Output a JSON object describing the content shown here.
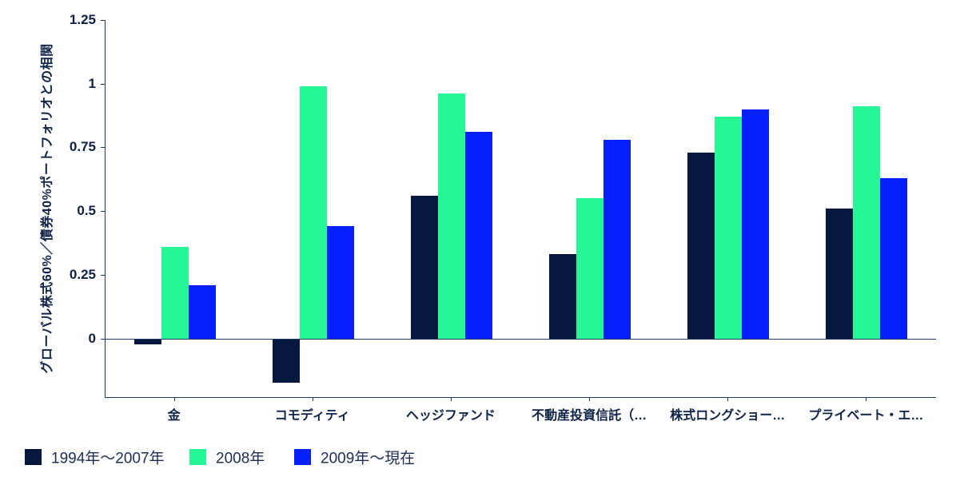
{
  "chart_data": {
    "type": "bar",
    "title": "",
    "xlabel": "",
    "ylabel": "グローバル株式60%／債券40%ポートフォリオとの相関",
    "categories": [
      "金",
      "コモディティ",
      "ヘッジファンド",
      "不動産投資信託（…",
      "株式ロングショー…",
      "プライベート・エ…"
    ],
    "series": [
      {
        "name": "1994年～2007年",
        "color": "#061740",
        "values": [
          -0.02,
          -0.17,
          0.56,
          0.33,
          0.73,
          0.51
        ]
      },
      {
        "name": "2008年",
        "color": "#26f796",
        "values": [
          0.36,
          0.99,
          0.96,
          0.55,
          0.87,
          0.91
        ]
      },
      {
        "name": "2009年～現在",
        "color": "#0520fa",
        "values": [
          0.21,
          0.44,
          0.81,
          0.78,
          0.9,
          0.63
        ]
      }
    ],
    "yticks": [
      0,
      0.25,
      0.5,
      0.75,
      1,
      1.25
    ],
    "ytick_labels": [
      "0",
      "0.25",
      "0.5",
      "0.75",
      "1",
      "1.25"
    ],
    "ylim": [
      -0.23,
      1.25
    ],
    "grid": false,
    "legend_position": "bottom-left",
    "axis_color": "#1c3c64",
    "background_color": "#ffffff"
  }
}
